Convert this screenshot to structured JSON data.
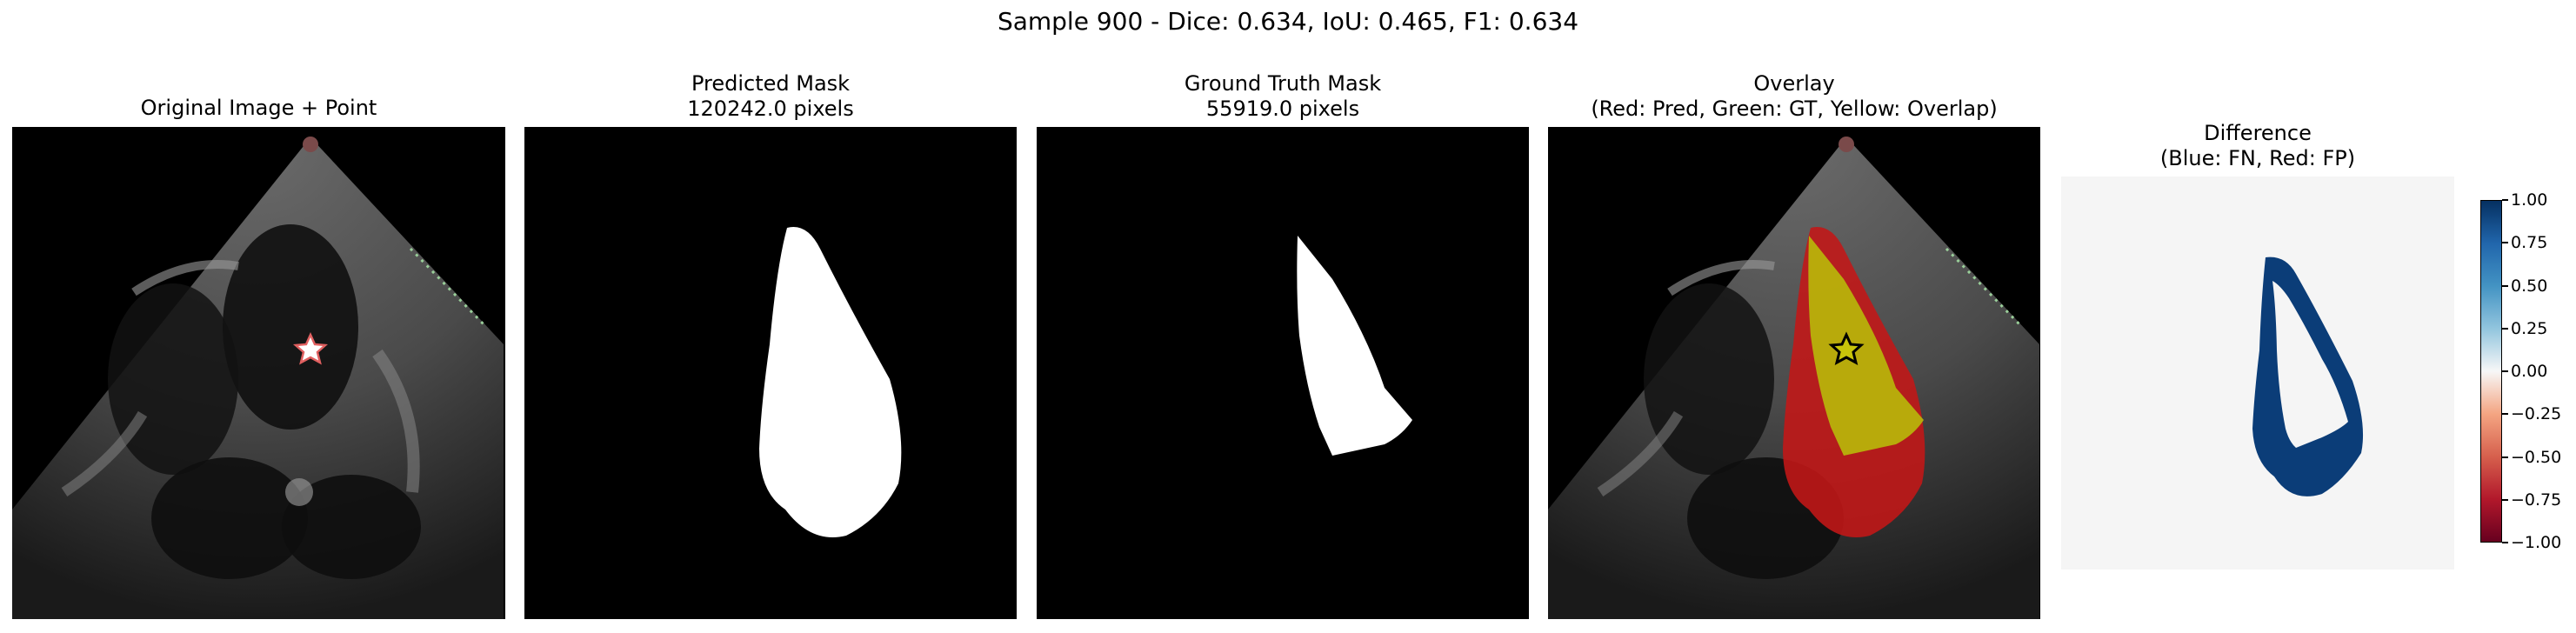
{
  "figure": {
    "suptitle": "Sample 900 - Dice: 0.634, IoU: 0.465, F1: 0.634"
  },
  "panels": [
    {
      "title": "Original Image + Point",
      "subtitle": ""
    },
    {
      "title": "Predicted Mask",
      "subtitle": "120242.0 pixels"
    },
    {
      "title": "Ground Truth Mask",
      "subtitle": "55919.0 pixels"
    },
    {
      "title": "Overlay",
      "subtitle": "(Red: Pred, Green: GT, Yellow: Overlap)"
    },
    {
      "title": "Difference",
      "subtitle": "(Blue: FN, Red: FP)"
    }
  ],
  "colors": {
    "background": "#000000",
    "mask": "#ffffff",
    "pred_overlay": "#c41717",
    "overlap_overlay": "#b8b60a",
    "difference_bg": "#f5f5f5",
    "false_negative": "#0b3d78",
    "star_fill_original": "#ffffff",
    "star_stroke_original": "#e06060",
    "star_fill_overlay": "#c8c40a",
    "star_stroke_overlay": "#000000"
  },
  "colorbar": {
    "colormap": "RdBu",
    "min": -1.0,
    "max": 1.0,
    "ticks": [
      "1.00",
      "0.75",
      "0.50",
      "0.25",
      "0.00",
      "−0.25",
      "−0.50",
      "−0.75",
      "−1.00"
    ]
  }
}
